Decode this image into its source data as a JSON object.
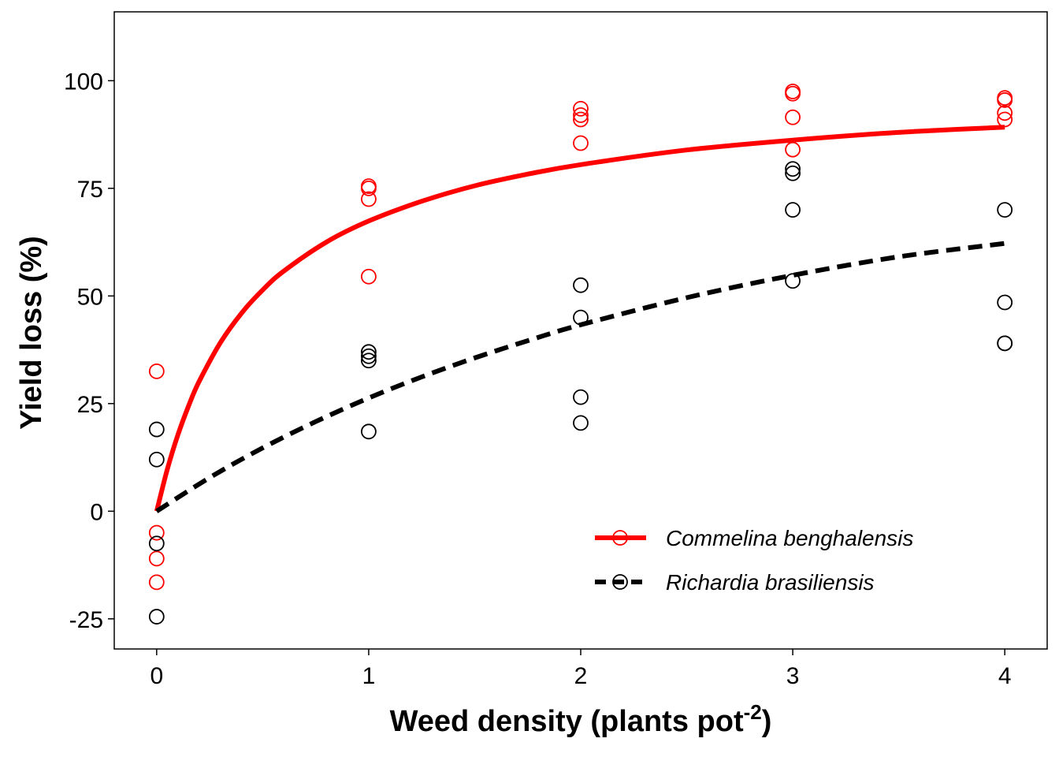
{
  "chart_data": {
    "type": "scatter",
    "xlabel": "Weed density (plants pot",
    "xlabel_superscript": "-2",
    "xlabel_suffix": ")",
    "ylabel": "Yield loss (%)",
    "xlim": [
      -0.2,
      4.2
    ],
    "ylim": [
      -32,
      116
    ],
    "x_ticks": [
      0,
      1,
      2,
      3,
      4
    ],
    "y_ticks": [
      -25,
      0,
      25,
      50,
      75,
      100
    ],
    "grid": false,
    "legend_position": "bottom-right",
    "series": [
      {
        "name": "Commelina benghalensis",
        "color": "#ff0000",
        "line_style": "solid",
        "points": [
          {
            "x": 0,
            "y": 32.5
          },
          {
            "x": 0,
            "y": -5
          },
          {
            "x": 0,
            "y": -11
          },
          {
            "x": 0,
            "y": -16.5
          },
          {
            "x": 1,
            "y": 75.5
          },
          {
            "x": 1,
            "y": 75
          },
          {
            "x": 1,
            "y": 72.5
          },
          {
            "x": 1,
            "y": 54.5
          },
          {
            "x": 2,
            "y": 93.5
          },
          {
            "x": 2,
            "y": 92
          },
          {
            "x": 2,
            "y": 91
          },
          {
            "x": 2,
            "y": 85.5
          },
          {
            "x": 3,
            "y": 97.5
          },
          {
            "x": 3,
            "y": 97
          },
          {
            "x": 3,
            "y": 91.5
          },
          {
            "x": 3,
            "y": 84
          },
          {
            "x": 4,
            "y": 96
          },
          {
            "x": 4,
            "y": 95.5
          },
          {
            "x": 4,
            "y": 92.5
          },
          {
            "x": 4,
            "y": 91
          }
        ],
        "fit_curve": {
          "x": [
            0,
            0.05,
            0.1,
            0.15,
            0.2,
            0.3,
            0.4,
            0.5,
            0.6,
            0.8,
            1.0,
            1.25,
            1.5,
            1.75,
            2.0,
            2.5,
            3.0,
            3.5,
            4.0
          ],
          "y": [
            0,
            9.7,
            17.7,
            24.4,
            30.1,
            39.1,
            46.0,
            51.4,
            55.8,
            62.5,
            67.4,
            72.0,
            75.6,
            78.3,
            80.5,
            83.9,
            86.2,
            88.0,
            89.2
          ]
        }
      },
      {
        "name": "Richardia brasiliensis",
        "color": "#000000",
        "line_style": "dashed",
        "points": [
          {
            "x": 0,
            "y": 19
          },
          {
            "x": 0,
            "y": 12
          },
          {
            "x": 0,
            "y": -7.5
          },
          {
            "x": 0,
            "y": -24.5
          },
          {
            "x": 1,
            "y": 37
          },
          {
            "x": 1,
            "y": 36
          },
          {
            "x": 1,
            "y": 35
          },
          {
            "x": 1,
            "y": 18.5
          },
          {
            "x": 2,
            "y": 52.5
          },
          {
            "x": 2,
            "y": 45
          },
          {
            "x": 2,
            "y": 26.5
          },
          {
            "x": 2,
            "y": 20.5
          },
          {
            "x": 3,
            "y": 79.5
          },
          {
            "x": 3,
            "y": 78.5
          },
          {
            "x": 3,
            "y": 70
          },
          {
            "x": 3,
            "y": 53.5
          },
          {
            "x": 4,
            "y": 70
          },
          {
            "x": 4,
            "y": 48.5
          },
          {
            "x": 4,
            "y": 39
          },
          {
            "x": 4,
            "y": 39
          }
        ],
        "fit_curve": {
          "x": [
            0,
            0.25,
            0.5,
            0.75,
            1.0,
            1.25,
            1.5,
            1.75,
            2.0,
            2.5,
            3.0,
            3.5,
            4.0
          ],
          "y": [
            0,
            7.8,
            14.7,
            20.8,
            26.3,
            31.2,
            35.6,
            39.6,
            43.3,
            49.6,
            54.8,
            59.1,
            62.2
          ]
        }
      }
    ]
  }
}
